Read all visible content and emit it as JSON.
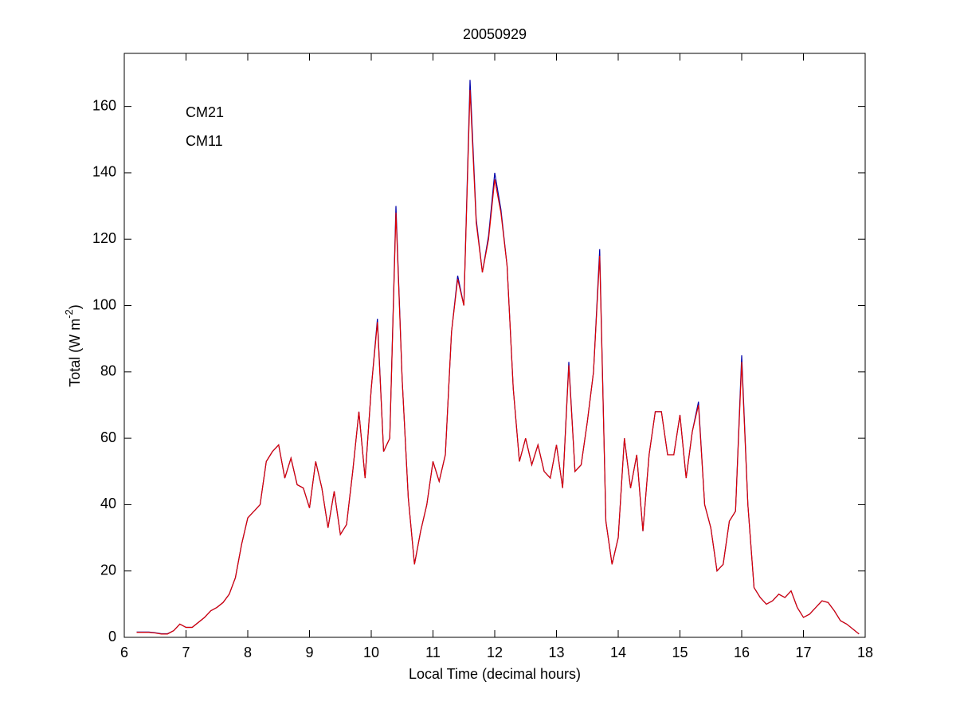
{
  "chart_data": {
    "type": "line",
    "title": "20050929",
    "x_label": "Local Time (decimal hours)",
    "y_label_parts": [
      "Total (W m",
      "-2",
      ")"
    ],
    "xlim": [
      6,
      18
    ],
    "xticks": [
      6,
      7,
      8,
      9,
      10,
      11,
      12,
      13,
      14,
      15,
      16,
      17,
      18
    ],
    "ylim": [
      0,
      176
    ],
    "yticks": [
      0,
      20,
      40,
      60,
      80,
      100,
      120,
      140,
      160
    ],
    "legend": "upper left",
    "x": [
      6.2,
      6.3,
      6.4,
      6.5,
      6.6,
      6.7,
      6.8,
      6.9,
      7.0,
      7.1,
      7.2,
      7.3,
      7.4,
      7.5,
      7.6,
      7.7,
      7.8,
      7.9,
      8.0,
      8.1,
      8.2,
      8.3,
      8.4,
      8.5,
      8.6,
      8.7,
      8.8,
      8.9,
      9.0,
      9.1,
      9.2,
      9.3,
      9.4,
      9.5,
      9.6,
      9.7,
      9.8,
      9.9,
      10.0,
      10.1,
      10.2,
      10.3,
      10.4,
      10.5,
      10.6,
      10.7,
      10.8,
      10.9,
      11.0,
      11.1,
      11.2,
      11.3,
      11.4,
      11.5,
      11.6,
      11.7,
      11.8,
      11.9,
      12.0,
      12.1,
      12.2,
      12.3,
      12.4,
      12.5,
      12.6,
      12.7,
      12.8,
      12.9,
      13.0,
      13.1,
      13.2,
      13.3,
      13.4,
      13.5,
      13.6,
      13.7,
      13.8,
      13.9,
      14.0,
      14.1,
      14.2,
      14.3,
      14.4,
      14.5,
      14.6,
      14.7,
      14.8,
      14.9,
      15.0,
      15.1,
      15.2,
      15.3,
      15.4,
      15.5,
      15.6,
      15.7,
      15.8,
      15.9,
      16.0,
      16.1,
      16.2,
      16.3,
      16.4,
      16.5,
      16.6,
      16.7,
      16.8,
      16.9,
      17.0,
      17.1,
      17.2,
      17.3,
      17.4,
      17.5,
      17.6,
      17.7,
      17.8,
      17.9
    ],
    "series": [
      {
        "name": "CM21",
        "color": "#0000aa",
        "values": [
          1.6,
          1.6,
          1.6,
          1.4,
          1.1,
          1.1,
          2,
          4,
          3,
          3,
          4.5,
          6,
          8,
          9,
          10.5,
          13,
          18,
          28,
          36,
          38,
          40,
          53,
          56,
          58,
          48,
          54,
          46,
          45,
          39,
          53,
          45,
          33,
          44,
          31,
          34,
          50,
          68,
          48,
          75,
          96,
          56,
          60,
          130,
          78,
          42,
          22,
          32,
          40,
          53,
          47,
          55,
          92,
          109,
          100,
          168,
          126,
          110,
          121,
          140,
          129,
          112,
          75,
          53,
          60,
          52,
          58,
          50,
          48,
          58,
          45,
          83,
          50,
          52,
          65,
          80,
          117,
          35,
          22,
          30,
          60,
          45,
          55,
          32,
          55,
          68,
          68,
          55,
          55,
          67,
          48,
          62,
          71,
          40,
          33,
          20,
          22,
          35,
          38,
          85,
          40,
          15,
          12,
          10,
          11,
          13,
          12,
          14,
          9,
          6,
          7,
          9,
          11,
          10.5,
          8,
          5,
          4,
          2.5,
          1
        ]
      },
      {
        "name": "CM11",
        "color": "#dd0000",
        "values": [
          1.5,
          1.5,
          1.5,
          1.3,
          1,
          1,
          2,
          4,
          3,
          3,
          4.5,
          6,
          8,
          9,
          10.5,
          13,
          18,
          28,
          36,
          38,
          40,
          53,
          56,
          58,
          48,
          54,
          46,
          45,
          39,
          53,
          45,
          33,
          44,
          31,
          34,
          50,
          68,
          48,
          75,
          95,
          56,
          60,
          128,
          78,
          42,
          22,
          32,
          40,
          53,
          47,
          55,
          92,
          108,
          100,
          165,
          125,
          110,
          120,
          138,
          128,
          112,
          75,
          53,
          60,
          52,
          58,
          50,
          48,
          58,
          45,
          82,
          50,
          52,
          65,
          80,
          115,
          35,
          22,
          30,
          60,
          45,
          55,
          32,
          55,
          68,
          68,
          55,
          55,
          67,
          48,
          62,
          70,
          40,
          33,
          20,
          22,
          35,
          38,
          83,
          40,
          15,
          12,
          10,
          11,
          13,
          12,
          14,
          9,
          6,
          7,
          9,
          11,
          10.5,
          8,
          5,
          4,
          2.5,
          1
        ]
      }
    ]
  }
}
